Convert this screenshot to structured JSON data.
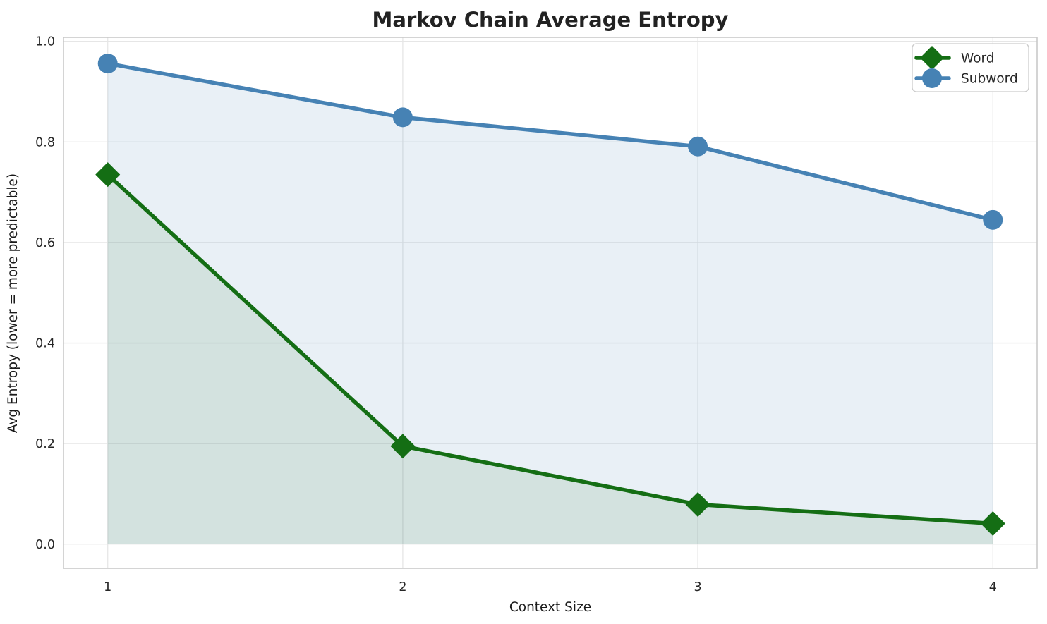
{
  "chart_data": {
    "type": "line",
    "title": "Markov Chain Average Entropy",
    "xlabel": "Context Size",
    "ylabel": "Avg Entropy (lower = more predictable)",
    "x": [
      1,
      2,
      3,
      4
    ],
    "series": [
      {
        "name": "Word",
        "values": [
          0.735,
          0.195,
          0.079,
          0.041
        ],
        "color": "#146e14",
        "marker": "diamond",
        "fill_opacity": 0.1
      },
      {
        "name": "Subword",
        "values": [
          0.956,
          0.849,
          0.791,
          0.645
        ],
        "color": "#4682b4",
        "marker": "circle",
        "fill_opacity": 0.12
      }
    ],
    "xticks": [
      1,
      2,
      3,
      4
    ],
    "yticks": [
      0.0,
      0.2,
      0.4,
      0.6,
      0.8,
      1.0
    ],
    "xlim": [
      0.85,
      4.15
    ],
    "ylim": [
      -0.048,
      1.008
    ],
    "grid": true,
    "area_fill_to": 0,
    "legend_position": "upper right"
  },
  "styles": {
    "grid_color": "#e6e6e6",
    "spine_color": "#c9c9c9",
    "tick_label_color": "#262626",
    "axis_label_color": "#1a1a1a",
    "title_color": "#222222",
    "legend_border_color": "#cccccc",
    "legend_bg_color": "#ffffff",
    "background_color": "#ffffff"
  }
}
